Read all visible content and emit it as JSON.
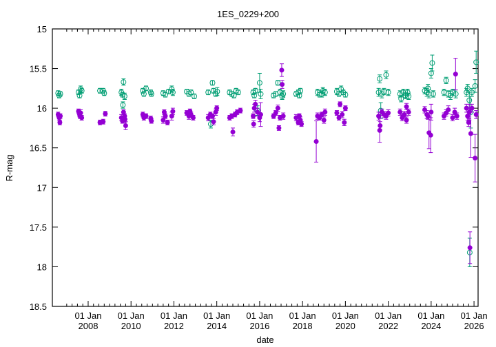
{
  "chart_data": {
    "type": "scatter",
    "title": "1ES_0229+200",
    "xlabel": "date",
    "ylabel": "R-mag",
    "xlim": [
      2006.33,
      2026.19
    ],
    "ylim": [
      15,
      18.5
    ],
    "y_inverted": true,
    "yticks": [
      15,
      15.5,
      16,
      16.5,
      17,
      17.5,
      18,
      18.5
    ],
    "ytick_labels": [
      "15",
      "15.5",
      "16",
      "16.5",
      "17",
      "17.5",
      "18",
      "18.5"
    ],
    "xticks": [
      2008,
      2010,
      2012,
      2014,
      2016,
      2018,
      2020,
      2022,
      2024,
      2026
    ],
    "xtick_labels": [
      [
        "01 Jan",
        "2008"
      ],
      [
        "01 Jan",
        "2010"
      ],
      [
        "01 Jan",
        "2012"
      ],
      [
        "01 Jan",
        "2014"
      ],
      [
        "01 Jan",
        "2016"
      ],
      [
        "01 Jan",
        "2018"
      ],
      [
        "01 Jan",
        "2020"
      ],
      [
        "01 Jan",
        "2022"
      ],
      [
        "01 Jan",
        "2024"
      ],
      [
        "01 Jan",
        "2026"
      ]
    ],
    "grid": false,
    "series": [
      {
        "name": "purple",
        "color": "#9400d3",
        "marker": "filled-circle",
        "points": [
          [
            2006.6,
            16.08,
            0.03
          ],
          [
            2006.65,
            16.12,
            0.03
          ],
          [
            2006.7,
            16.1,
            0.03
          ],
          [
            2006.68,
            16.18,
            0.03
          ],
          [
            2007.55,
            16.04,
            0.03
          ],
          [
            2007.6,
            16.08,
            0.03
          ],
          [
            2007.65,
            16.06,
            0.04
          ],
          [
            2007.7,
            16.12,
            0.03
          ],
          [
            2007.62,
            16.1,
            0.03
          ],
          [
            2008.55,
            16.18,
            0.03
          ],
          [
            2008.7,
            16.17,
            0.03
          ],
          [
            2008.8,
            16.07,
            0.03
          ],
          [
            2009.55,
            16.12,
            0.04
          ],
          [
            2009.6,
            16.16,
            0.03
          ],
          [
            2009.7,
            16.1,
            0.03
          ],
          [
            2009.75,
            16.22,
            0.05
          ],
          [
            2009.65,
            16.05,
            0.03
          ],
          [
            2009.72,
            16.14,
            0.04
          ],
          [
            2010.55,
            16.08,
            0.03
          ],
          [
            2010.6,
            16.12,
            0.03
          ],
          [
            2010.7,
            16.1,
            0.03
          ],
          [
            2010.92,
            16.13,
            0.03
          ],
          [
            2010.95,
            16.16,
            0.03
          ],
          [
            2011.5,
            16.15,
            0.04
          ],
          [
            2011.55,
            16.05,
            0.03
          ],
          [
            2011.6,
            16.1,
            0.03
          ],
          [
            2011.7,
            16.18,
            0.03
          ],
          [
            2011.9,
            16.1,
            0.05
          ],
          [
            2011.95,
            16.04,
            0.04
          ],
          [
            2012.6,
            16.06,
            0.03
          ],
          [
            2012.7,
            16.1,
            0.04
          ],
          [
            2012.8,
            16.08,
            0.03
          ],
          [
            2012.9,
            16.12,
            0.03
          ],
          [
            2012.75,
            16.04,
            0.03
          ],
          [
            2013.6,
            16.12,
            0.04
          ],
          [
            2013.7,
            16.08,
            0.03
          ],
          [
            2013.8,
            16.1,
            0.03
          ],
          [
            2013.85,
            16.17,
            0.04
          ],
          [
            2013.95,
            16.05,
            0.04
          ],
          [
            2014.0,
            16.0,
            0.03
          ],
          [
            2014.6,
            16.12,
            0.03
          ],
          [
            2014.7,
            16.1,
            0.03
          ],
          [
            2014.75,
            16.3,
            0.05
          ],
          [
            2014.85,
            16.08,
            0.03
          ],
          [
            2014.95,
            16.05,
            0.03
          ],
          [
            2015.1,
            16.03,
            0.03
          ],
          [
            2015.7,
            16.1,
            0.03
          ],
          [
            2015.75,
            16.0,
            0.05
          ],
          [
            2015.8,
            15.95,
            0.05
          ],
          [
            2015.9,
            16.05,
            0.05
          ],
          [
            2016.0,
            16.12,
            0.05
          ],
          [
            2016.05,
            16.08,
            0.15
          ],
          [
            2015.72,
            16.2,
            0.04
          ],
          [
            2016.65,
            16.1,
            0.03
          ],
          [
            2016.75,
            16.06,
            0.03
          ],
          [
            2016.85,
            16.0,
            0.04
          ],
          [
            2016.9,
            16.25,
            0.03
          ],
          [
            2016.95,
            16.12,
            0.03
          ],
          [
            2017.03,
            15.52,
            0.08
          ],
          [
            2017.05,
            15.7,
            0.05
          ],
          [
            2017.1,
            16.1,
            0.04
          ],
          [
            2017.7,
            16.12,
            0.04
          ],
          [
            2017.8,
            16.18,
            0.03
          ],
          [
            2017.85,
            16.1,
            0.03
          ],
          [
            2017.9,
            16.15,
            0.04
          ],
          [
            2017.95,
            16.2,
            0.03
          ],
          [
            2018.64,
            16.42,
            0.26
          ],
          [
            2018.7,
            16.1,
            0.04
          ],
          [
            2018.8,
            16.12,
            0.03
          ],
          [
            2018.9,
            16.08,
            0.03
          ],
          [
            2019.0,
            16.15,
            0.04
          ],
          [
            2019.05,
            16.05,
            0.04
          ],
          [
            2019.6,
            16.06,
            0.03
          ],
          [
            2019.7,
            16.12,
            0.03
          ],
          [
            2019.75,
            15.95,
            0.03
          ],
          [
            2019.85,
            16.08,
            0.04
          ],
          [
            2019.95,
            16.18,
            0.04
          ],
          [
            2020.0,
            16.0,
            0.03
          ],
          [
            2021.55,
            16.1,
            0.05
          ],
          [
            2021.6,
            16.28,
            0.15
          ],
          [
            2021.62,
            16.22,
            0.05
          ],
          [
            2021.7,
            16.05,
            0.04
          ],
          [
            2021.8,
            16.08,
            0.04
          ],
          [
            2021.9,
            16.1,
            0.04
          ],
          [
            2022.0,
            16.06,
            0.04
          ],
          [
            2022.55,
            16.05,
            0.04
          ],
          [
            2022.65,
            16.12,
            0.04
          ],
          [
            2022.75,
            16.08,
            0.04
          ],
          [
            2022.85,
            16.15,
            0.04
          ],
          [
            2022.95,
            16.05,
            0.04
          ],
          [
            2022.85,
            15.98,
            0.04
          ],
          [
            2023.7,
            16.02,
            0.04
          ],
          [
            2023.8,
            16.08,
            0.05
          ],
          [
            2023.85,
            16.1,
            0.04
          ],
          [
            2023.9,
            16.31,
            0.2
          ],
          [
            2023.98,
            16.34,
            0.22
          ],
          [
            2024.0,
            16.05,
            0.1
          ],
          [
            2024.6,
            16.1,
            0.04
          ],
          [
            2024.7,
            16.06,
            0.04
          ],
          [
            2024.8,
            16.02,
            0.05
          ],
          [
            2025.0,
            16.12,
            0.04
          ],
          [
            2025.1,
            16.05,
            0.05
          ],
          [
            2025.14,
            15.57,
            0.2
          ],
          [
            2025.2,
            16.1,
            0.04
          ],
          [
            2025.65,
            16.0,
            0.05
          ],
          [
            2025.7,
            16.1,
            0.05
          ],
          [
            2025.75,
            16.18,
            0.05
          ],
          [
            2025.78,
            16.05,
            0.1
          ],
          [
            2025.81,
            17.76,
            0.2
          ],
          [
            2025.85,
            16.32,
            0.3
          ],
          [
            2025.9,
            16.0,
            0.05
          ],
          [
            2026.05,
            16.63,
            0.3
          ],
          [
            2026.1,
            16.08,
            0.05
          ]
        ]
      },
      {
        "name": "green",
        "color": "#009e73",
        "marker": "open-circle",
        "points": [
          [
            2006.6,
            15.81,
            0.03
          ],
          [
            2006.65,
            15.84,
            0.03
          ],
          [
            2006.7,
            15.82,
            0.03
          ],
          [
            2007.55,
            15.8,
            0.03
          ],
          [
            2007.6,
            15.84,
            0.03
          ],
          [
            2007.65,
            15.76,
            0.04
          ],
          [
            2007.7,
            15.78,
            0.03
          ],
          [
            2008.55,
            15.78,
            0.03
          ],
          [
            2008.7,
            15.78,
            0.03
          ],
          [
            2008.75,
            15.81,
            0.03
          ],
          [
            2009.55,
            15.8,
            0.04
          ],
          [
            2009.6,
            15.83,
            0.03
          ],
          [
            2009.65,
            15.67,
            0.04
          ],
          [
            2009.7,
            15.85,
            0.04
          ],
          [
            2009.62,
            15.96,
            0.04
          ],
          [
            2010.55,
            15.78,
            0.03
          ],
          [
            2010.6,
            15.82,
            0.03
          ],
          [
            2010.7,
            15.75,
            0.03
          ],
          [
            2010.92,
            15.8,
            0.03
          ],
          [
            2010.95,
            15.82,
            0.03
          ],
          [
            2011.5,
            15.81,
            0.03
          ],
          [
            2011.6,
            15.83,
            0.03
          ],
          [
            2011.75,
            15.79,
            0.03
          ],
          [
            2011.9,
            15.76,
            0.04
          ],
          [
            2011.95,
            15.8,
            0.04
          ],
          [
            2012.6,
            15.79,
            0.03
          ],
          [
            2012.7,
            15.82,
            0.03
          ],
          [
            2012.8,
            15.8,
            0.03
          ],
          [
            2012.95,
            15.85,
            0.03
          ],
          [
            2013.6,
            15.8,
            0.03
          ],
          [
            2013.72,
            16.2,
            0.05
          ],
          [
            2013.8,
            15.68,
            0.03
          ],
          [
            2013.85,
            15.78,
            0.03
          ],
          [
            2013.95,
            15.82,
            0.03
          ],
          [
            2014.02,
            15.79,
            0.05
          ],
          [
            2014.6,
            15.8,
            0.03
          ],
          [
            2014.7,
            15.82,
            0.03
          ],
          [
            2014.8,
            15.84,
            0.03
          ],
          [
            2014.9,
            15.78,
            0.03
          ],
          [
            2015.0,
            15.8,
            0.03
          ],
          [
            2015.7,
            15.8,
            0.03
          ],
          [
            2015.75,
            15.84,
            0.03
          ],
          [
            2015.8,
            15.78,
            0.03
          ],
          [
            2015.9,
            16.03,
            0.06
          ],
          [
            2016.0,
            15.68,
            0.12
          ],
          [
            2016.05,
            15.82,
            0.06
          ],
          [
            2016.65,
            15.84,
            0.03
          ],
          [
            2016.75,
            15.82,
            0.03
          ],
          [
            2016.85,
            15.68,
            0.03
          ],
          [
            2016.95,
            15.8,
            0.04
          ],
          [
            2017.05,
            15.85,
            0.04
          ],
          [
            2017.1,
            15.82,
            0.04
          ],
          [
            2017.7,
            15.82,
            0.03
          ],
          [
            2017.8,
            15.8,
            0.03
          ],
          [
            2017.85,
            15.84,
            0.03
          ],
          [
            2017.9,
            15.78,
            0.03
          ],
          [
            2018.7,
            15.8,
            0.04
          ],
          [
            2018.8,
            15.83,
            0.03
          ],
          [
            2018.9,
            15.82,
            0.04
          ],
          [
            2018.95,
            15.78,
            0.04
          ],
          [
            2019.05,
            15.8,
            0.04
          ],
          [
            2019.6,
            15.79,
            0.04
          ],
          [
            2019.7,
            15.82,
            0.03
          ],
          [
            2019.8,
            15.76,
            0.04
          ],
          [
            2019.9,
            15.8,
            0.03
          ],
          [
            2020.0,
            15.83,
            0.03
          ],
          [
            2021.55,
            15.8,
            0.05
          ],
          [
            2021.6,
            15.63,
            0.05
          ],
          [
            2021.65,
            16.03,
            0.1
          ],
          [
            2021.7,
            15.82,
            0.05
          ],
          [
            2021.8,
            15.79,
            0.04
          ],
          [
            2021.9,
            15.58,
            0.05
          ],
          [
            2022.0,
            15.8,
            0.04
          ],
          [
            2022.55,
            15.82,
            0.04
          ],
          [
            2022.6,
            15.88,
            0.04
          ],
          [
            2022.7,
            15.8,
            0.04
          ],
          [
            2022.8,
            15.84,
            0.04
          ],
          [
            2022.9,
            15.8,
            0.04
          ],
          [
            2022.95,
            15.85,
            0.04
          ],
          [
            2023.7,
            15.78,
            0.04
          ],
          [
            2023.8,
            15.8,
            0.05
          ],
          [
            2023.85,
            15.75,
            0.05
          ],
          [
            2023.9,
            15.82,
            0.05
          ],
          [
            2024.0,
            15.56,
            0.06
          ],
          [
            2024.05,
            15.43,
            0.1
          ],
          [
            2024.1,
            15.82,
            0.04
          ],
          [
            2024.6,
            15.8,
            0.04
          ],
          [
            2024.7,
            15.65,
            0.04
          ],
          [
            2024.8,
            15.82,
            0.04
          ],
          [
            2024.9,
            15.84,
            0.05
          ],
          [
            2025.0,
            15.8,
            0.04
          ],
          [
            2025.15,
            15.82,
            0.05
          ],
          [
            2025.65,
            15.8,
            0.05
          ],
          [
            2025.7,
            15.75,
            0.05
          ],
          [
            2025.78,
            15.9,
            0.1
          ],
          [
            2025.8,
            17.82,
            0.18
          ],
          [
            2025.85,
            16.05,
            0.2
          ],
          [
            2025.9,
            15.8,
            0.05
          ],
          [
            2026.05,
            15.72,
            0.08
          ],
          [
            2026.1,
            15.42,
            0.14
          ]
        ]
      }
    ]
  }
}
